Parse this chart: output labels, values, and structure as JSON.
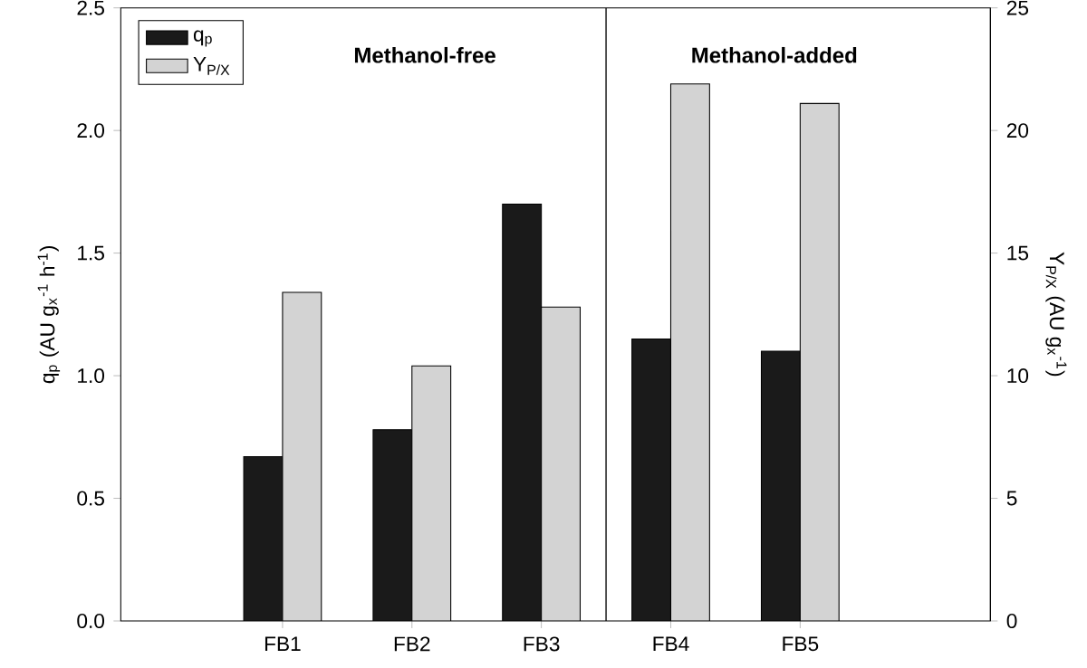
{
  "chart_data": {
    "type": "bar",
    "categories": [
      "FB1",
      "FB2",
      "FB3",
      "FB4",
      "FB5"
    ],
    "series": [
      {
        "name": "q$_{p}$",
        "color": "#1a1a1a",
        "values": [
          0.67,
          0.78,
          1.7,
          1.15,
          1.1
        ]
      },
      {
        "name": "Y$_{P/X}$",
        "color": "#d3d3d3",
        "axis": "y2",
        "values": [
          13.4,
          10.4,
          12.8,
          21.9,
          21.1
        ]
      }
    ],
    "ylabel": "q$_{p}$ (AU g$_{x}$$^{-1}$ h$^{-1}$)",
    "y2label": "Y$_{P/X}$ (AU g$_{x}$$^{-1}$)",
    "ylim": [
      0,
      2.5
    ],
    "yticks": [
      {
        "value": 0,
        "label": "0.0"
      },
      0.5,
      {
        "value": 1,
        "label": "1.0"
      },
      1.5,
      {
        "value": 2,
        "label": "2.0"
      },
      2.5
    ],
    "y2lim": [
      0,
      25
    ],
    "y2ticks": [
      0,
      5,
      10,
      15,
      20,
      25
    ],
    "annotations": [
      "Methanol-free",
      "Methanol-added"
    ],
    "legend": "top left"
  }
}
